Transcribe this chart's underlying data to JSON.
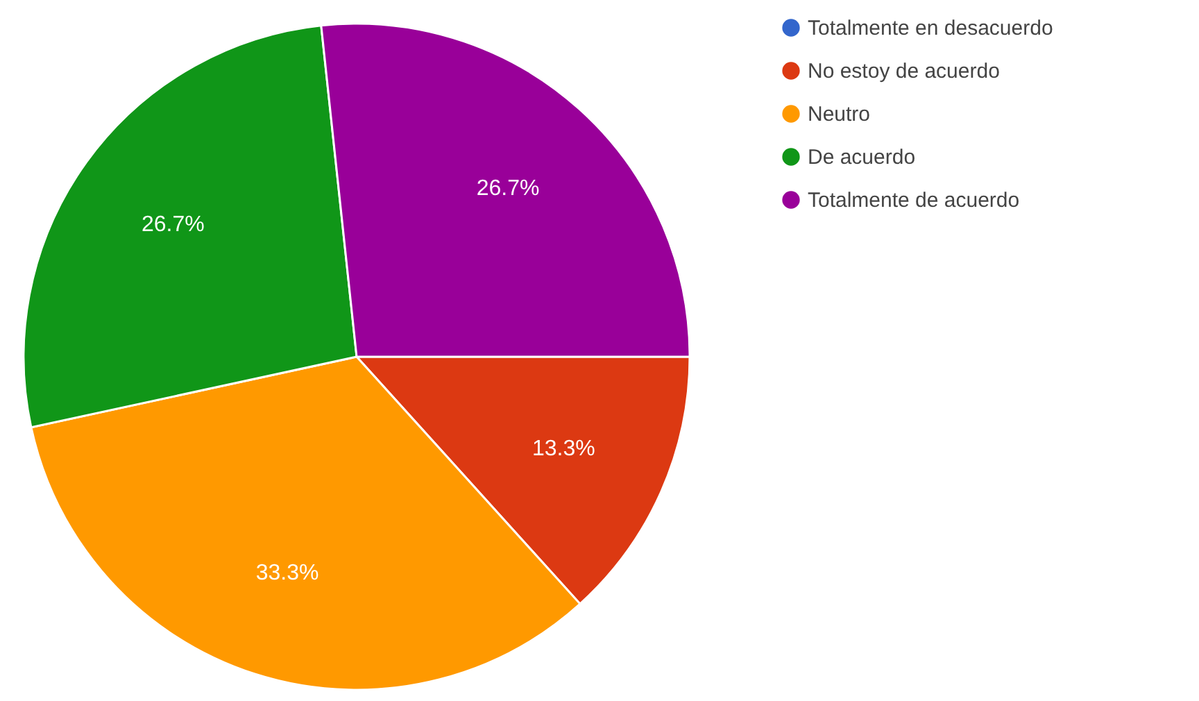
{
  "chart_data": {
    "type": "pie",
    "categories": [
      "Totalmente en desacuerdo",
      "No estoy de acuerdo",
      "Neutro",
      "De acuerdo",
      "Totalmente de acuerdo"
    ],
    "values": [
      0,
      13.3,
      33.3,
      26.7,
      26.7
    ],
    "colors": [
      "#3366cc",
      "#dc3912",
      "#ff9900",
      "#109618",
      "#990099"
    ],
    "value_labels": [
      null,
      "13.3%",
      "33.3%",
      "26.7%",
      "26.7%"
    ],
    "legend": "top right"
  }
}
